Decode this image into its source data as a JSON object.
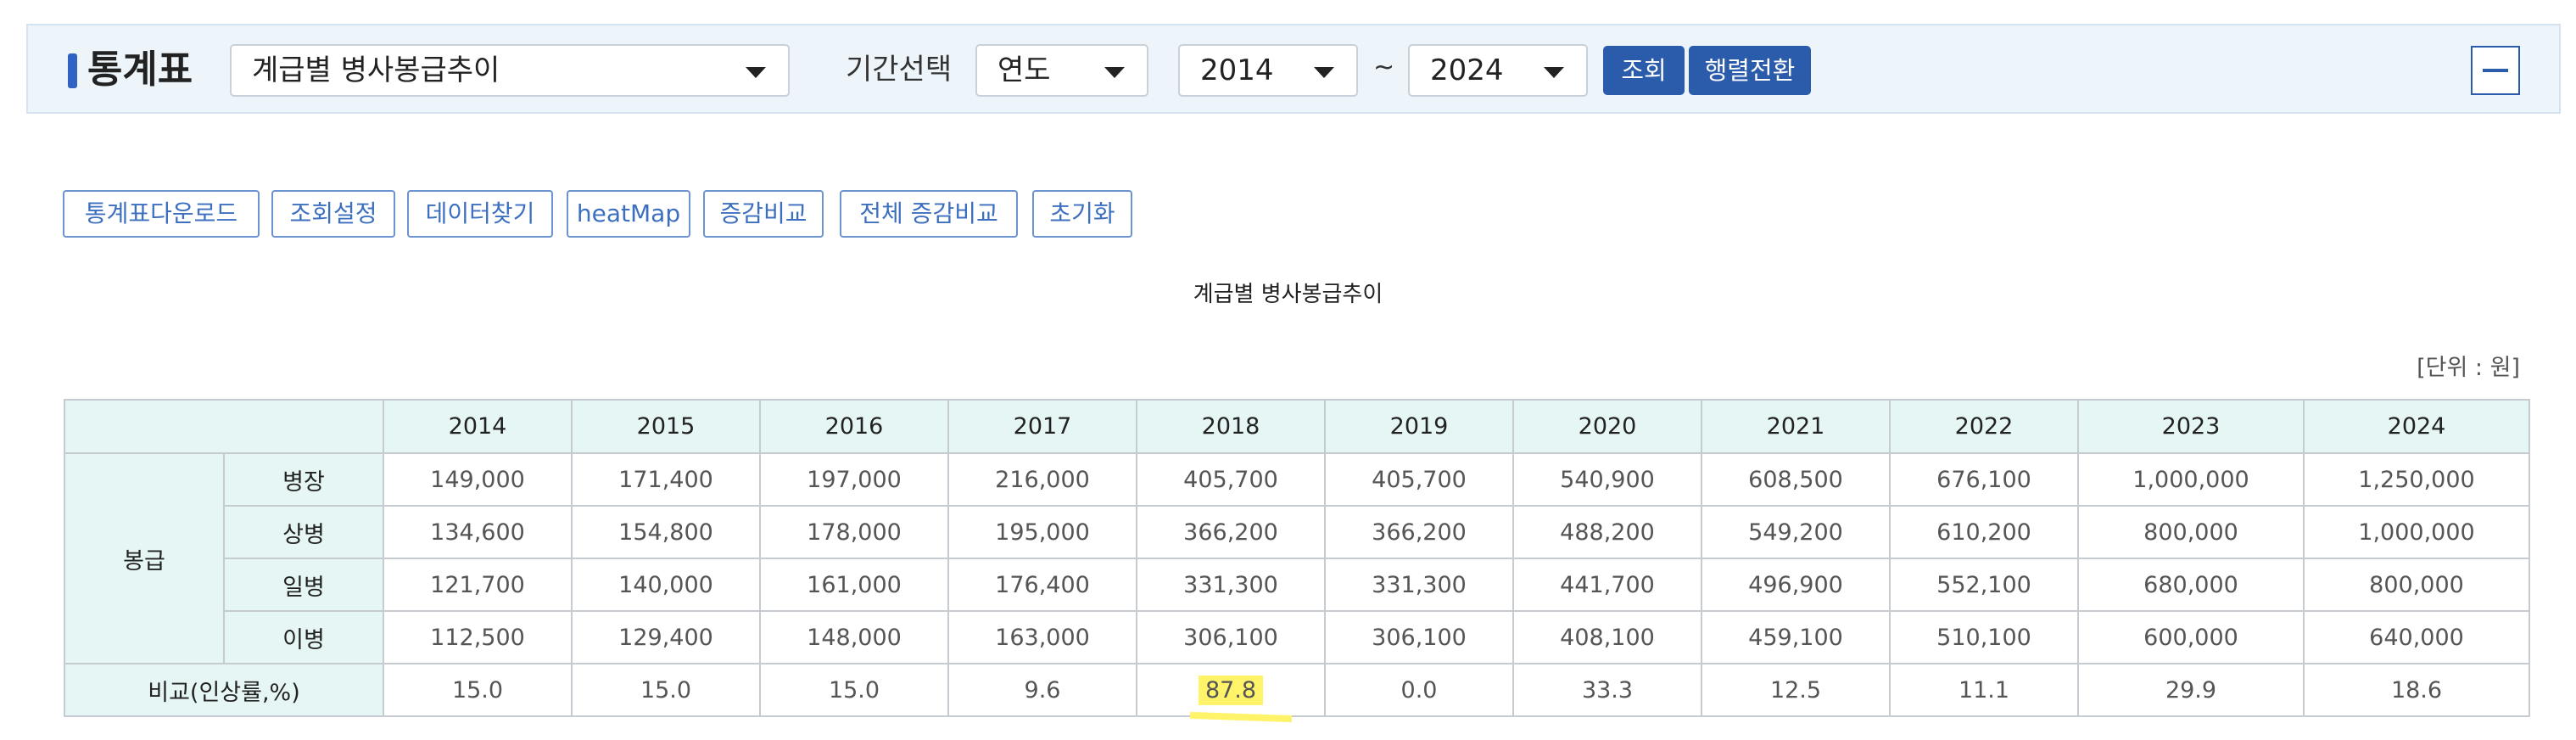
{
  "header": {
    "title": "통계표",
    "table_select": "계급별 병사봉급추이",
    "period_label": "기간선택",
    "period_type": "연도",
    "from_year": "2014",
    "tilde": "~",
    "to_year": "2024",
    "query_button": "조회",
    "transpose_button": "행렬전환",
    "collapse_icon": "minus-icon"
  },
  "tools": [
    "통계표다운로드",
    "조회설정",
    "데이터찾기",
    "heatMap",
    "증감비교",
    "전체 증감비교",
    "초기화"
  ],
  "table": {
    "title": "계급별 병사봉급추이",
    "unit": "[단위 : 원]",
    "years": [
      "2014",
      "2015",
      "2016",
      "2017",
      "2018",
      "2019",
      "2020",
      "2021",
      "2022",
      "2023",
      "2024"
    ],
    "group_label": "봉급",
    "rows": [
      {
        "label": "병장",
        "values": [
          "149,000",
          "171,400",
          "197,000",
          "216,000",
          "405,700",
          "405,700",
          "540,900",
          "608,500",
          "676,100",
          "1,000,000",
          "1,250,000"
        ]
      },
      {
        "label": "상병",
        "values": [
          "134,600",
          "154,800",
          "178,000",
          "195,000",
          "366,200",
          "366,200",
          "488,200",
          "549,200",
          "610,200",
          "800,000",
          "1,000,000"
        ]
      },
      {
        "label": "일병",
        "values": [
          "121,700",
          "140,000",
          "161,000",
          "176,400",
          "331,300",
          "331,300",
          "441,700",
          "496,900",
          "552,100",
          "680,000",
          "800,000"
        ]
      },
      {
        "label": "이병",
        "values": [
          "112,500",
          "129,400",
          "148,000",
          "163,000",
          "306,100",
          "306,100",
          "408,100",
          "459,100",
          "510,100",
          "600,000",
          "640,000"
        ]
      }
    ],
    "compare_label": "비교(인상률,%)",
    "compare_values": [
      "15.0",
      "15.0",
      "15.0",
      "9.6",
      "87.8",
      "0.0",
      "33.3",
      "12.5",
      "11.1",
      "29.9",
      "18.6"
    ],
    "highlight_color": "#fff36a"
  }
}
